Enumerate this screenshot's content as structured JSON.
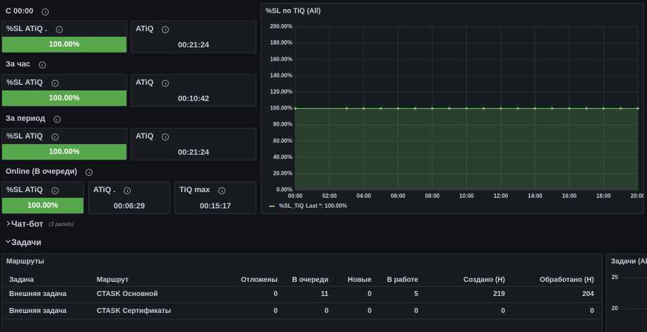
{
  "sections": [
    {
      "title": "С 00:00",
      "panels": [
        {
          "title": "%SL ATiQ .",
          "value": "100.00%"
        },
        {
          "title": "ATiQ",
          "value": "00:21:24"
        }
      ]
    },
    {
      "title": "За час",
      "panels": [
        {
          "title": "%SL ATiQ",
          "value": "100.00%"
        },
        {
          "title": "ATiQ",
          "value": "00:10:42"
        }
      ]
    },
    {
      "title": "За период",
      "panels": [
        {
          "title": "%SL ATiQ",
          "value": "100.00%"
        },
        {
          "title": "ATiQ",
          "value": "00:21:24"
        }
      ]
    },
    {
      "title": "Online (В очереди)",
      "panels": [
        {
          "title": "%SL ATiQ",
          "value": "100.00%"
        },
        {
          "title": "ATiQ .",
          "value": "00:06:29"
        },
        {
          "title": "TiQ max",
          "value": "00:15:17"
        }
      ]
    }
  ],
  "chart_data": {
    "type": "line",
    "title": "%SL по TiQ (All)",
    "x": [
      0,
      3,
      4,
      5,
      6,
      7,
      8,
      9,
      10,
      11,
      12,
      13,
      14,
      15,
      16,
      17,
      18,
      19,
      20
    ],
    "series": [
      {
        "name": "%SL_TiQ",
        "color": "#73bf69",
        "values": [
          100,
          100,
          100,
          100,
          100,
          100,
          100,
          100,
          100,
          100,
          100,
          100,
          100,
          100,
          100,
          100,
          100,
          100,
          100
        ]
      }
    ],
    "legend_stat": "Last *: 100.00%",
    "xlim": [
      0,
      20
    ],
    "xticks": [
      {
        "value": 0,
        "label": "00:00"
      },
      {
        "value": 2,
        "label": "02:00"
      },
      {
        "value": 4,
        "label": "04:00"
      },
      {
        "value": 6,
        "label": "06:00"
      },
      {
        "value": 8,
        "label": "08:00"
      },
      {
        "value": 10,
        "label": "10:00"
      },
      {
        "value": 12,
        "label": "12:00"
      },
      {
        "value": 14,
        "label": "14:00"
      },
      {
        "value": 16,
        "label": "16:00"
      },
      {
        "value": 18,
        "label": "18:00"
      },
      {
        "value": 20,
        "label": "20:00"
      }
    ],
    "ylim": [
      0,
      200
    ],
    "yticks": [
      {
        "value": 0,
        "label": "0.00%"
      },
      {
        "value": 20,
        "label": "20.00%"
      },
      {
        "value": 40,
        "label": "40.00%"
      },
      {
        "value": 60,
        "label": "60.00%"
      },
      {
        "value": 80,
        "label": "80.00%"
      },
      {
        "value": 100,
        "label": "100.00%"
      },
      {
        "value": 120,
        "label": "120.00%"
      },
      {
        "value": 140,
        "label": "140.00%"
      },
      {
        "value": 160,
        "label": "160.00%"
      },
      {
        "value": 180,
        "label": "180.00%"
      },
      {
        "value": 200,
        "label": "200.00%"
      }
    ],
    "grid": true,
    "legend": "bottom"
  },
  "rows": [
    {
      "title": "Чат-бот",
      "note": "(3 panels)"
    },
    {
      "title": "Задачи"
    }
  ],
  "table": {
    "title": "Маршруты",
    "columns": [
      "Задача",
      "Маршрут",
      "Отложены",
      "В очереди",
      "Новые",
      "В работе",
      "Создано (Н)",
      "Обработано (Н)"
    ],
    "rows": [
      [
        "Внешняя задача",
        "CTASK Основной",
        0,
        11,
        0,
        5,
        219,
        204
      ],
      [
        "Внешняя задача",
        "CTASK Сертификаты",
        0,
        0,
        0,
        0,
        0,
        0
      ]
    ]
  },
  "tasks_panel": {
    "title": "Задачи (All)",
    "yticks": [
      25,
      20
    ]
  }
}
